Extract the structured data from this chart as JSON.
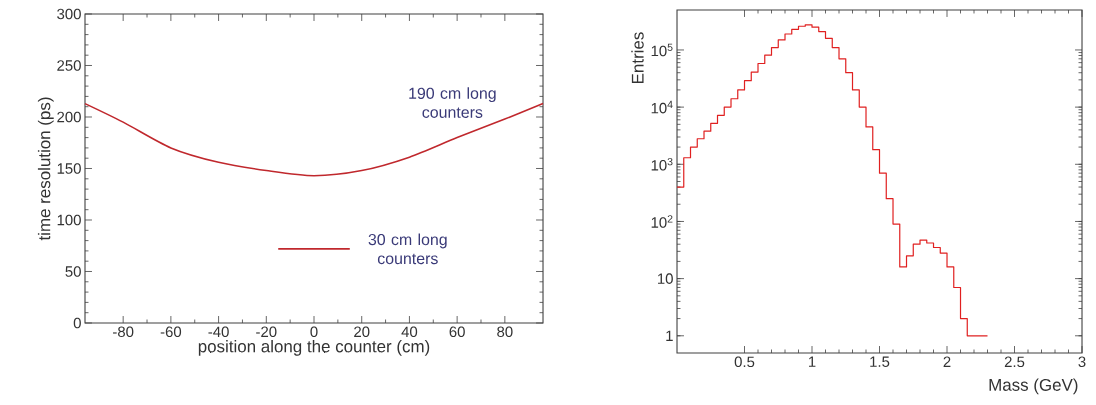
{
  "chart_data": [
    {
      "type": "line",
      "xlabel": "position along the counter (cm)",
      "ylabel": "time resolution (ps)",
      "xlim": [
        -96,
        96
      ],
      "xticks": [
        -80,
        -60,
        -40,
        -20,
        0,
        20,
        40,
        60,
        80
      ],
      "ylim": [
        0,
        300
      ],
      "yticks": [
        0,
        50,
        100,
        150,
        200,
        250,
        300
      ],
      "series": [
        {
          "name": "190 cm long counters",
          "color": "#c0282d",
          "x": [
            -96,
            -80,
            -60,
            -40,
            -20,
            0,
            20,
            40,
            60,
            80,
            96
          ],
          "values": [
            213,
            195,
            170,
            156,
            148,
            143,
            148,
            161,
            180,
            198,
            213
          ]
        },
        {
          "name": "30 cm long counters",
          "color": "#c0282d",
          "x": [
            -15,
            15
          ],
          "values": [
            72,
            72
          ]
        }
      ]
    },
    {
      "type": "histogram",
      "xlabel": "Mass (GeV)",
      "ylabel": "Entries",
      "color": "#e02020",
      "log": true,
      "xlim": [
        0,
        3
      ],
      "xticks": [
        0.5,
        1,
        1.5,
        2,
        2.5,
        3
      ],
      "ylim": [
        0.5,
        500000
      ],
      "yticks": [
        1,
        10,
        {
          "value": 100,
          "label": "10$^{2}$"
        },
        {
          "value": 1000,
          "label": "10$^{3}$"
        },
        {
          "value": 10000,
          "label": "10$^{4}$"
        },
        {
          "value": 100000,
          "label": "10$^{5}$"
        }
      ],
      "bins": [
        0,
        0.05,
        0.1,
        0.15,
        0.2,
        0.25,
        0.3,
        0.35,
        0.4,
        0.45,
        0.5,
        0.55,
        0.6,
        0.65,
        0.7,
        0.75,
        0.8,
        0.85,
        0.9,
        0.95,
        1.0,
        1.05,
        1.1,
        1.15,
        1.2,
        1.25,
        1.3,
        1.35,
        1.4,
        1.45,
        1.5,
        1.55,
        1.6,
        1.65,
        1.7,
        1.75,
        1.8,
        1.85,
        1.9,
        1.95,
        2.0,
        2.05,
        2.1,
        2.15,
        2.2,
        2.25,
        2.3
      ],
      "values": [
        400,
        1300,
        2000,
        2800,
        3800,
        5200,
        7200,
        10000,
        14000,
        20000,
        29000,
        41000,
        58000,
        81000,
        110000,
        150000,
        190000,
        230000,
        260000,
        275000,
        250000,
        210000,
        160000,
        110000,
        70000,
        40000,
        20000,
        10000,
        4500,
        1800,
        700,
        250,
        90,
        16,
        25,
        40,
        47,
        42,
        35,
        28,
        16,
        7,
        2,
        1,
        1,
        1
      ]
    }
  ]
}
